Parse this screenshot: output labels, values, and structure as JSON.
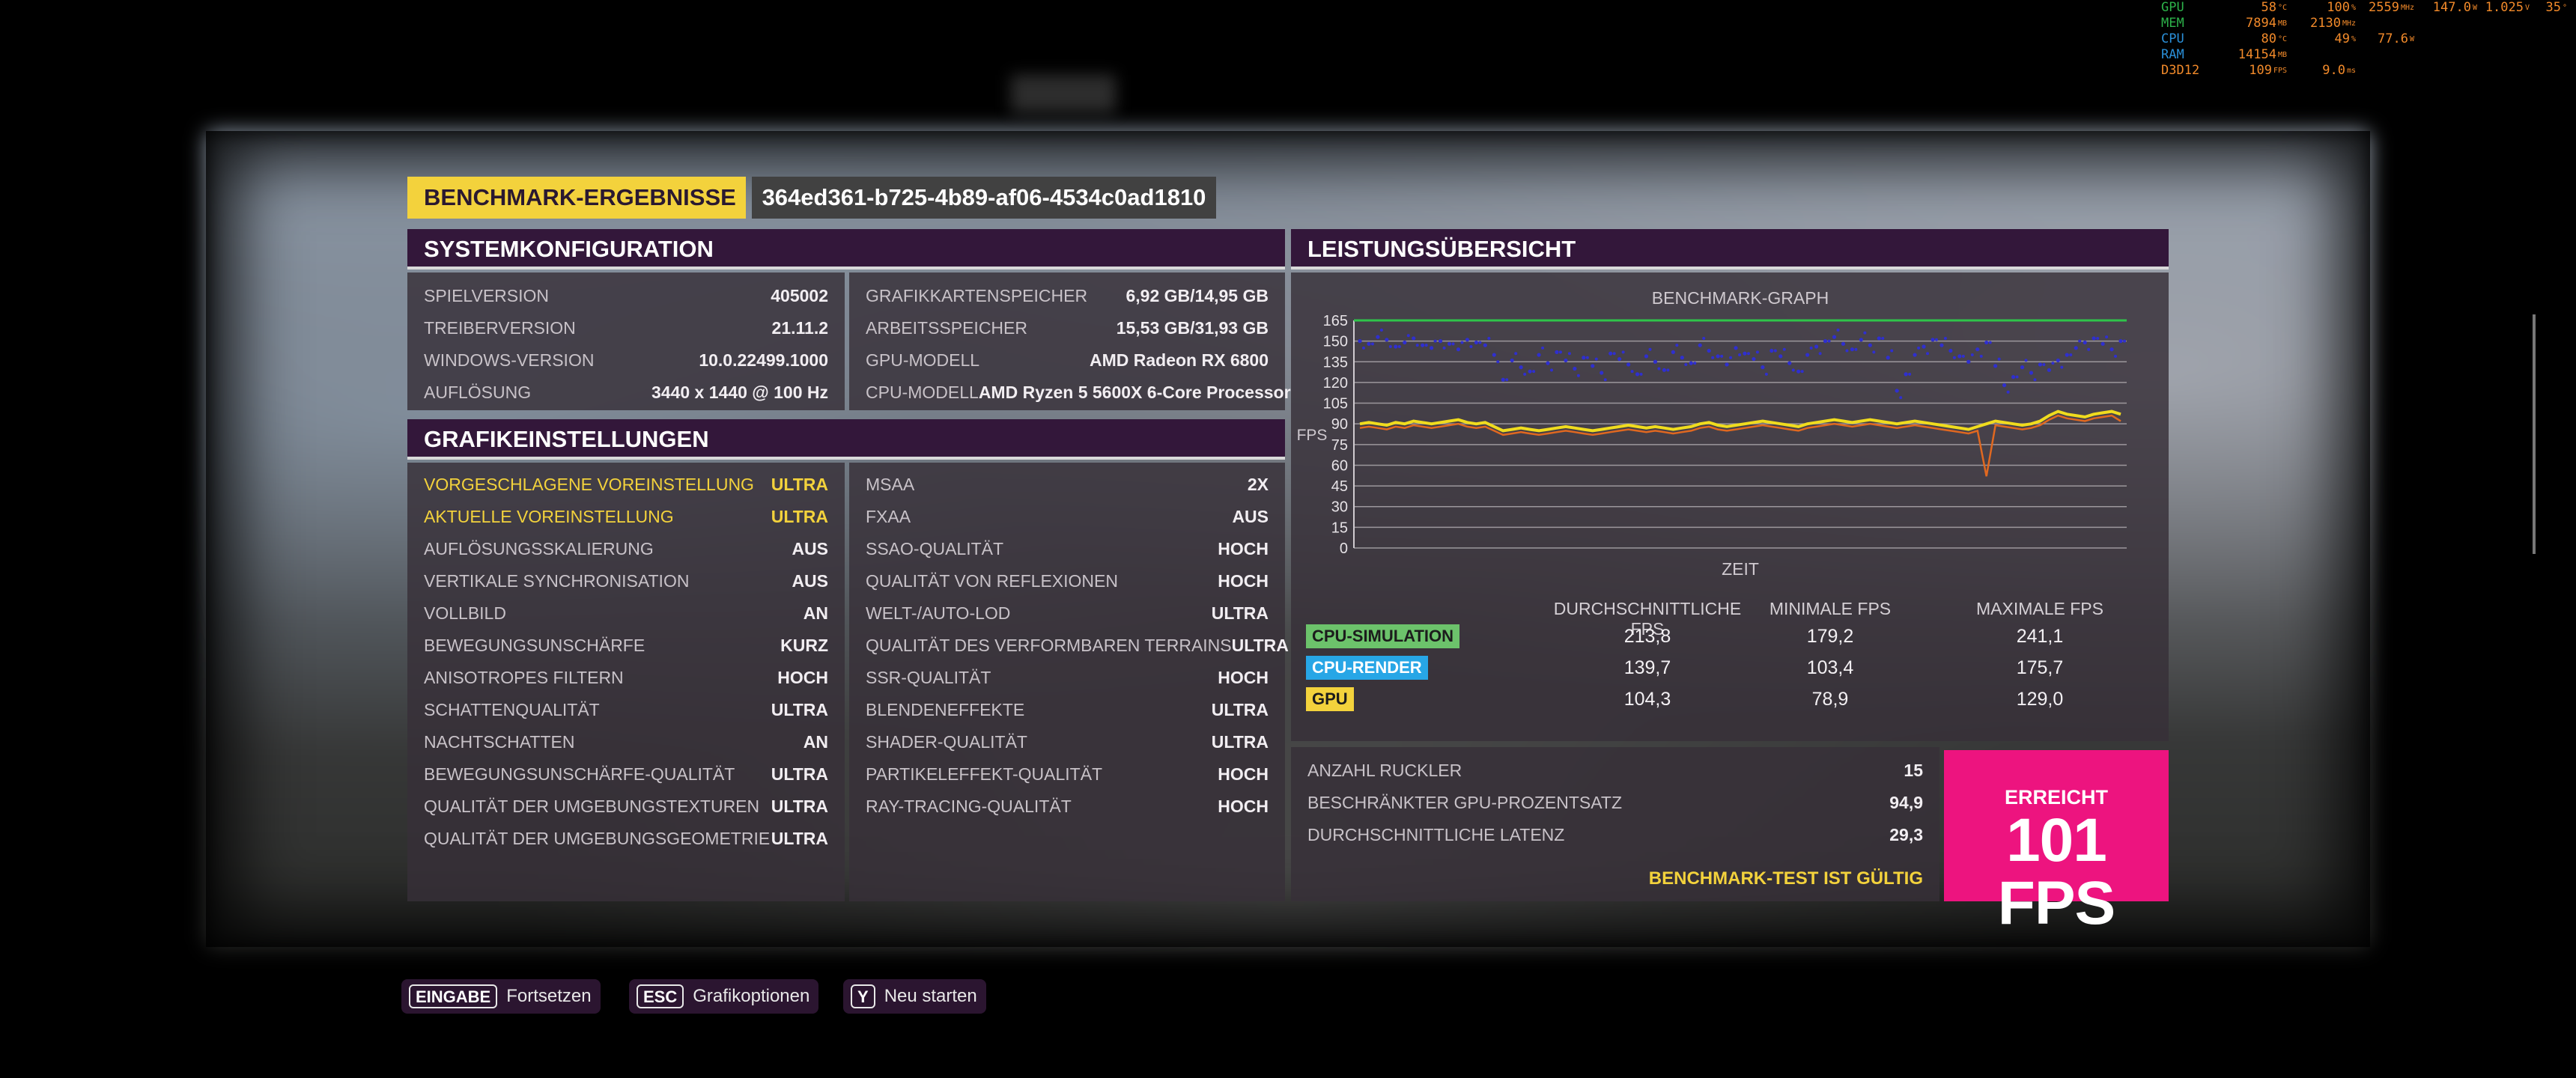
{
  "hud": {
    "rows": [
      {
        "name": "GPU",
        "color": "#2db24a",
        "c1": "58",
        "u1": "°C",
        "c2": "100",
        "u2": "%",
        "c3": "2559",
        "u3": "MHz",
        "c4": "147.0",
        "u4": "W",
        "c5": "1.025",
        "u5": "V",
        "c6": "35",
        "u6": "°"
      },
      {
        "name": "MEM",
        "color": "#2db24a",
        "c1": "7894",
        "u1": "MB",
        "c2": "2130",
        "u2": "MHz",
        "c3": "",
        "u3": "",
        "c4": "",
        "u4": "",
        "c5": "",
        "u5": "",
        "c6": "",
        "u6": ""
      },
      {
        "name": "CPU",
        "color": "#2a8fd8",
        "c1": "80",
        "u1": "°C",
        "c2": "49",
        "u2": "%",
        "c3": "77.6",
        "u3": "W",
        "c4": "",
        "u4": "",
        "c5": "",
        "u5": "",
        "c6": "",
        "u6": ""
      },
      {
        "name": "RAM",
        "color": "#2a8fd8",
        "c1": "14154",
        "u1": "MB",
        "c2": "",
        "u2": "",
        "c3": "",
        "u3": "",
        "c4": "",
        "u4": "",
        "c5": "",
        "u5": "",
        "c6": "",
        "u6": ""
      },
      {
        "name": "D3D12",
        "color": "#f28a2a",
        "c1": "109",
        "u1": "FPS",
        "c2": "9.0",
        "u2": "ms",
        "c3": "",
        "u3": "",
        "c4": "",
        "u4": "",
        "c5": "",
        "u5": "",
        "c6": "",
        "u6": ""
      }
    ],
    "value_color": "#f28a2a"
  },
  "header": {
    "title": "BENCHMARK-ERGEBNISSE",
    "run_id": "364ed361-b725-4b89-af06-4534c0ad1810"
  },
  "system": {
    "title": "SYSTEMKONFIGURATION",
    "left": [
      {
        "k": "SPIELVERSION",
        "v": "405002"
      },
      {
        "k": "TREIBERVERSION",
        "v": "21.11.2"
      },
      {
        "k": "WINDOWS-VERSION",
        "v": "10.0.22499.1000"
      },
      {
        "k": "AUFLÖSUNG",
        "v": "3440 x 1440 @ 100 Hz"
      }
    ],
    "right": [
      {
        "k": "GRAFIKKARTENSPEICHER",
        "v": "6,92 GB/14,95 GB"
      },
      {
        "k": "ARBEITSSPEICHER",
        "v": "15,53 GB/31,93 GB"
      },
      {
        "k": "GPU-MODELL",
        "v": "AMD Radeon RX 6800"
      },
      {
        "k": "CPU-MODELL",
        "v": "AMD Ryzen 5 5600X 6-Core Processor"
      }
    ]
  },
  "graphics": {
    "title": "GRAFIKEINSTELLUNGEN",
    "left": [
      {
        "k": "VORGESCHLAGENE VOREINSTELLUNG",
        "v": "ULTRA",
        "hl": true
      },
      {
        "k": "AKTUELLE VOREINSTELLUNG",
        "v": "ULTRA",
        "hl": true
      },
      {
        "k": "AUFLÖSUNGSSKALIERUNG",
        "v": "AUS"
      },
      {
        "k": "VERTIKALE SYNCHRONISATION",
        "v": "AUS"
      },
      {
        "k": "VOLLBILD",
        "v": "AN"
      },
      {
        "k": "BEWEGUNGSUNSCHÄRFE",
        "v": "KURZ"
      },
      {
        "k": "ANISOTROPES FILTERN",
        "v": "HOCH"
      },
      {
        "k": "SCHATTENQUALITÄT",
        "v": "ULTRA"
      },
      {
        "k": "NACHTSCHATTEN",
        "v": "AN"
      },
      {
        "k": "BEWEGUNGSUNSCHÄRFE-QUALITÄT",
        "v": "ULTRA"
      },
      {
        "k": "QUALITÄT DER UMGEBUNGSTEXTUREN",
        "v": "ULTRA"
      },
      {
        "k": "QUALITÄT DER UMGEBUNGSGEOMETRIE",
        "v": "ULTRA"
      }
    ],
    "right": [
      {
        "k": "MSAA",
        "v": "2X"
      },
      {
        "k": "FXAA",
        "v": "AUS"
      },
      {
        "k": "SSAO-QUALITÄT",
        "v": "HOCH"
      },
      {
        "k": "QUALITÄT VON REFLEXIONEN",
        "v": "HOCH"
      },
      {
        "k": "WELT-/AUTO-LOD",
        "v": "ULTRA"
      },
      {
        "k": "QUALITÄT DES VERFORMBAREN TERRAINS",
        "v": "ULTRA"
      },
      {
        "k": "SSR-QUALITÄT",
        "v": "HOCH"
      },
      {
        "k": "BLENDENEFFEKTE",
        "v": "ULTRA"
      },
      {
        "k": "SHADER-QUALITÄT",
        "v": "ULTRA"
      },
      {
        "k": "PARTIKELEFFEKT-QUALITÄT",
        "v": "HOCH"
      },
      {
        "k": "RAY-TRACING-QUALITÄT",
        "v": "HOCH"
      }
    ]
  },
  "performance": {
    "title": "LEISTUNGSÜBERSICHT",
    "stats_headers": [
      "DURCHSCHNITTLICHE FPS",
      "MINIMALE FPS",
      "MAXIMALE FPS"
    ],
    "stats_rows": [
      {
        "label": "CPU-SIMULATION",
        "color": "#6cc36b",
        "avg": "213,8",
        "min": "179,2",
        "max": "241,1"
      },
      {
        "label": "CPU-RENDER",
        "color": "#27a6e6",
        "avg": "139,7",
        "min": "103,4",
        "max": "175,7"
      },
      {
        "label": "GPU",
        "color": "#f3d23c",
        "avg": "104,3",
        "min": "78,9",
        "max": "129,0"
      }
    ],
    "extra": [
      {
        "k": "ANZAHL RUCKLER",
        "v": "15"
      },
      {
        "k": "BESCHRÄNKTER GPU-PROZENTSATZ",
        "v": "94,9"
      },
      {
        "k": "DURCHSCHNITTLICHE LATENZ",
        "v": "29,3"
      }
    ],
    "valid_text": "BENCHMARK-TEST IST GÜLTIG",
    "fps_label": "ERREICHT",
    "fps_value": "101 FPS"
  },
  "chart_data": {
    "type": "line",
    "title": "BENCHMARK-GRAPH",
    "xlabel": "ZEIT",
    "ylabel": "FPS",
    "yticks": [
      0,
      15,
      30,
      45,
      60,
      75,
      90,
      105,
      120,
      135,
      150,
      165
    ],
    "ylim": [
      0,
      165
    ],
    "grid": true,
    "target_line": 165,
    "series": [
      {
        "color": "#2f2fcf",
        "values": [
          150,
          148,
          153,
          151,
          146,
          149,
          152,
          147,
          145,
          150,
          148,
          144,
          151,
          149,
          147,
          140,
          122,
          136,
          131,
          128,
          140,
          134,
          142,
          136,
          130,
          138,
          132,
          127,
          141,
          137,
          133,
          126,
          139,
          135,
          129,
          142,
          138,
          134,
          147,
          143,
          139,
          133,
          145,
          141,
          137,
          131,
          143,
          139,
          134,
          128,
          140,
          146,
          150,
          153,
          148,
          144,
          151,
          147,
          152,
          138,
          114,
          126,
          140,
          146,
          151,
          147,
          143,
          139,
          135,
          144,
          149,
          132,
          118,
          124,
          131,
          127,
          133,
          129,
          136,
          140,
          145,
          149,
          152,
          148,
          144,
          150
        ]
      },
      {
        "color": "#f0dc1e",
        "values": [
          90,
          91,
          90,
          89,
          91,
          90,
          92,
          91,
          90,
          91,
          92,
          93,
          91,
          90,
          91,
          88,
          85,
          86,
          87,
          86,
          85,
          86,
          87,
          88,
          87,
          86,
          85,
          86,
          87,
          88,
          89,
          88,
          87,
          88,
          87,
          86,
          87,
          88,
          90,
          91,
          89,
          88,
          89,
          90,
          91,
          92,
          91,
          90,
          89,
          88,
          90,
          91,
          92,
          93,
          92,
          91,
          92,
          93,
          92,
          91,
          90,
          91,
          92,
          91,
          90,
          89,
          88,
          87,
          86,
          88,
          90,
          92,
          91,
          90,
          89,
          90,
          92,
          96,
          99,
          97,
          96,
          95,
          97,
          98,
          99,
          97
        ]
      },
      {
        "color": "#e06820",
        "values": [
          87,
          88,
          87,
          86,
          88,
          87,
          89,
          88,
          87,
          88,
          89,
          90,
          88,
          87,
          88,
          85,
          82,
          83,
          84,
          83,
          82,
          83,
          84,
          85,
          84,
          83,
          82,
          83,
          84,
          85,
          86,
          85,
          84,
          85,
          84,
          83,
          84,
          85,
          87,
          88,
          86,
          85,
          86,
          87,
          88,
          89,
          88,
          87,
          86,
          85,
          87,
          88,
          89,
          90,
          89,
          88,
          89,
          90,
          89,
          88,
          87,
          88,
          89,
          88,
          87,
          86,
          85,
          84,
          83,
          85,
          52,
          89,
          88,
          87,
          86,
          87,
          89,
          93,
          96,
          94,
          93,
          92,
          94,
          95,
          96,
          92
        ]
      }
    ]
  },
  "prompts": [
    {
      "key": "EINGABE",
      "label": "Fortsetzen"
    },
    {
      "key": "ESC",
      "label": "Grafikoptionen"
    },
    {
      "key": "Y",
      "label": "Neu starten"
    }
  ]
}
